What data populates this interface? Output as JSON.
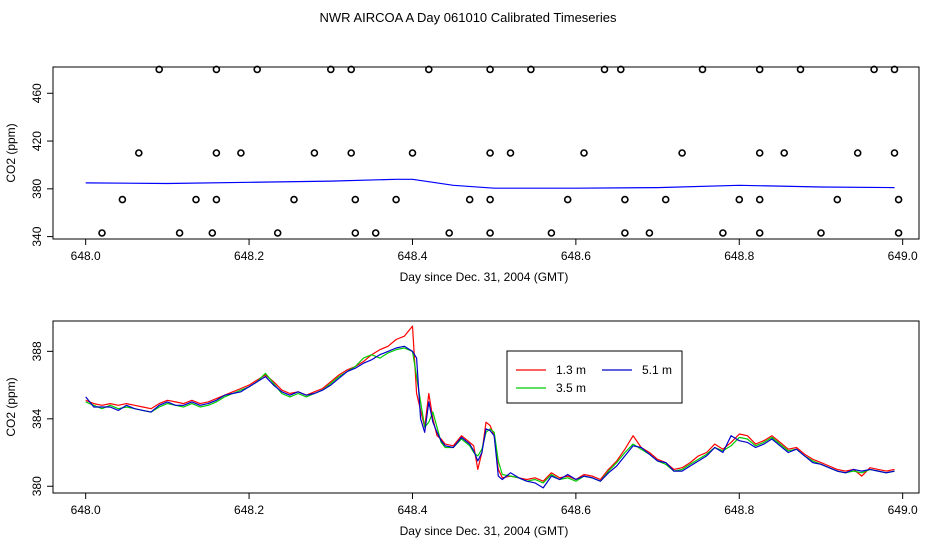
{
  "title": "NWR AIRCOA A  Day 061010  Calibrated Timeseries",
  "chart_data": [
    {
      "type": "scatter",
      "xlabel": "Day since Dec. 31, 2004 (GMT)",
      "ylabel": "CO2 (ppm)",
      "xlim": [
        647.96,
        649.02
      ],
      "ylim": [
        338,
        482
      ],
      "xticks": [
        "648.0",
        "648.2",
        "648.4",
        "648.6",
        "648.8",
        "649.0"
      ],
      "yticks": [
        "340",
        "380",
        "420",
        "460"
      ],
      "points": [
        [
          648.09,
          480
        ],
        [
          648.16,
          480
        ],
        [
          648.21,
          480
        ],
        [
          648.3,
          480
        ],
        [
          648.325,
          480
        ],
        [
          648.42,
          480
        ],
        [
          648.495,
          480
        ],
        [
          648.545,
          480
        ],
        [
          648.635,
          480
        ],
        [
          648.655,
          480
        ],
        [
          648.755,
          480
        ],
        [
          648.825,
          480
        ],
        [
          648.875,
          480
        ],
        [
          648.965,
          480
        ],
        [
          648.99,
          480
        ],
        [
          648.065,
          410
        ],
        [
          648.16,
          410
        ],
        [
          648.19,
          410
        ],
        [
          648.28,
          410
        ],
        [
          648.325,
          410
        ],
        [
          648.4,
          410
        ],
        [
          648.495,
          410
        ],
        [
          648.52,
          410
        ],
        [
          648.61,
          410
        ],
        [
          648.73,
          410
        ],
        [
          648.825,
          410
        ],
        [
          648.855,
          410
        ],
        [
          648.945,
          410
        ],
        [
          648.99,
          410
        ],
        [
          648.045,
          371
        ],
        [
          648.135,
          371
        ],
        [
          648.16,
          371
        ],
        [
          648.255,
          371
        ],
        [
          648.33,
          371
        ],
        [
          648.38,
          371
        ],
        [
          648.47,
          371
        ],
        [
          648.495,
          371
        ],
        [
          648.59,
          371
        ],
        [
          648.66,
          371
        ],
        [
          648.71,
          371
        ],
        [
          648.8,
          371
        ],
        [
          648.825,
          371
        ],
        [
          648.92,
          371
        ],
        [
          648.995,
          371
        ],
        [
          648.02,
          343
        ],
        [
          648.115,
          343
        ],
        [
          648.155,
          343
        ],
        [
          648.235,
          343
        ],
        [
          648.33,
          343
        ],
        [
          648.355,
          343
        ],
        [
          648.445,
          343
        ],
        [
          648.495,
          343
        ],
        [
          648.57,
          343
        ],
        [
          648.66,
          343
        ],
        [
          648.69,
          343
        ],
        [
          648.78,
          343
        ],
        [
          648.825,
          343
        ],
        [
          648.9,
          343
        ],
        [
          648.995,
          343
        ]
      ],
      "series": [
        {
          "x": [
            648.0,
            648.1,
            648.2,
            648.3,
            648.38,
            648.4,
            648.45,
            648.5,
            648.6,
            648.7,
            648.8,
            648.9,
            648.99
          ],
          "values": [
            385,
            384.5,
            385.5,
            386.5,
            388,
            388,
            383,
            380.5,
            380.5,
            381,
            383,
            381.5,
            381
          ],
          "color": "#0000ff"
        }
      ]
    },
    {
      "type": "line",
      "xlabel": "Day since Dec. 31, 2004 (GMT)",
      "ylabel": "CO2 (ppm)",
      "xlim": [
        647.96,
        649.02
      ],
      "ylim": [
        379.6,
        389.8
      ],
      "xticks": [
        "648.0",
        "648.2",
        "648.4",
        "648.6",
        "648.8",
        "649.0"
      ],
      "yticks": [
        "380",
        "384",
        "388"
      ],
      "legend_position": "top-center",
      "x": [
        648.0,
        648.01,
        648.02,
        648.03,
        648.04,
        648.05,
        648.06,
        648.07,
        648.08,
        648.09,
        648.1,
        648.11,
        648.12,
        648.13,
        648.14,
        648.15,
        648.16,
        648.17,
        648.18,
        648.19,
        648.2,
        648.21,
        648.22,
        648.23,
        648.24,
        648.25,
        648.26,
        648.27,
        648.28,
        648.29,
        648.3,
        648.31,
        648.32,
        648.33,
        648.34,
        648.35,
        648.36,
        648.37,
        648.38,
        648.39,
        648.4,
        648.405,
        648.41,
        648.415,
        648.42,
        648.425,
        648.43,
        648.435,
        648.44,
        648.45,
        648.46,
        648.47,
        648.475,
        648.48,
        648.485,
        648.49,
        648.495,
        648.5,
        648.505,
        648.51,
        648.52,
        648.53,
        648.54,
        648.55,
        648.56,
        648.57,
        648.58,
        648.59,
        648.6,
        648.61,
        648.62,
        648.63,
        648.64,
        648.65,
        648.66,
        648.67,
        648.68,
        648.69,
        648.7,
        648.71,
        648.72,
        648.73,
        648.74,
        648.75,
        648.76,
        648.77,
        648.78,
        648.79,
        648.8,
        648.81,
        648.82,
        648.83,
        648.84,
        648.85,
        648.86,
        648.87,
        648.88,
        648.89,
        648.9,
        648.91,
        648.92,
        648.93,
        648.94,
        648.95,
        648.96,
        648.97,
        648.98,
        648.99
      ],
      "series": [
        {
          "name": "1.3 m",
          "color": "#ff0000",
          "values": [
            385.1,
            384.9,
            384.8,
            384.9,
            384.8,
            384.9,
            384.8,
            384.7,
            384.6,
            384.9,
            385.1,
            385.0,
            384.9,
            385.1,
            384.9,
            385.0,
            385.2,
            385.4,
            385.6,
            385.8,
            386.0,
            386.3,
            386.6,
            386.2,
            385.7,
            385.5,
            385.6,
            385.4,
            385.6,
            385.8,
            386.2,
            386.6,
            386.9,
            387.1,
            387.4,
            387.8,
            388.1,
            388.3,
            388.7,
            388.9,
            389.5,
            385.5,
            384.5,
            383.5,
            385.5,
            384.0,
            383.0,
            382.8,
            382.5,
            382.4,
            383.0,
            382.6,
            382.4,
            381.0,
            382.0,
            383.8,
            383.6,
            383.0,
            381.0,
            380.5,
            380.6,
            380.5,
            380.4,
            380.5,
            380.3,
            380.8,
            380.5,
            380.6,
            380.4,
            380.7,
            380.6,
            380.4,
            381.0,
            381.5,
            382.2,
            383.0,
            382.3,
            382.0,
            381.6,
            381.4,
            381.0,
            381.1,
            381.4,
            381.8,
            382.0,
            382.5,
            382.2,
            382.6,
            383.1,
            383.0,
            382.5,
            382.7,
            383.0,
            382.6,
            382.2,
            382.3,
            381.9,
            381.6,
            381.4,
            381.2,
            381.0,
            380.9,
            381.0,
            380.6,
            381.1,
            381.0,
            380.9,
            381.0
          ]
        },
        {
          "name": "3.5 m",
          "color": "#00cc00",
          "values": [
            385.0,
            384.8,
            384.6,
            384.8,
            384.6,
            384.7,
            384.6,
            384.5,
            384.4,
            384.7,
            384.9,
            384.8,
            384.7,
            384.9,
            384.7,
            384.8,
            385.0,
            385.3,
            385.5,
            385.7,
            385.9,
            386.2,
            386.7,
            386.1,
            385.5,
            385.3,
            385.5,
            385.3,
            385.5,
            385.7,
            386.1,
            386.5,
            386.8,
            387.1,
            387.6,
            387.8,
            387.6,
            387.9,
            388.1,
            388.2,
            388.0,
            386.5,
            385.0,
            383.5,
            383.8,
            384.4,
            383.5,
            382.6,
            382.3,
            382.3,
            382.8,
            382.4,
            382.0,
            381.8,
            382.2,
            383.2,
            383.4,
            383.2,
            381.5,
            380.7,
            380.6,
            380.5,
            380.3,
            380.4,
            380.2,
            380.7,
            380.4,
            380.5,
            380.3,
            380.6,
            380.5,
            380.3,
            380.9,
            381.4,
            382.0,
            382.5,
            382.2,
            381.9,
            381.5,
            381.3,
            380.9,
            381.0,
            381.3,
            381.6,
            381.9,
            382.3,
            382.1,
            382.4,
            382.9,
            382.8,
            382.4,
            382.6,
            382.9,
            382.5,
            382.1,
            382.2,
            381.8,
            381.5,
            381.3,
            381.1,
            380.9,
            380.8,
            380.9,
            380.8,
            381.0,
            380.9,
            380.8,
            380.9
          ]
        },
        {
          "name": "5.1 m",
          "color": "#0000cc",
          "values": [
            385.3,
            384.7,
            384.7,
            384.7,
            384.5,
            384.8,
            384.6,
            384.5,
            384.4,
            384.8,
            385.0,
            384.8,
            384.8,
            385.0,
            384.8,
            384.9,
            385.1,
            385.4,
            385.5,
            385.6,
            385.9,
            386.2,
            386.5,
            386.0,
            385.6,
            385.4,
            385.6,
            385.4,
            385.5,
            385.7,
            386.0,
            386.4,
            386.8,
            387.0,
            387.3,
            387.5,
            387.8,
            388.0,
            388.2,
            388.3,
            388.0,
            387.6,
            384.0,
            383.2,
            385.0,
            383.8,
            383.2,
            382.7,
            382.4,
            382.3,
            382.9,
            382.5,
            382.1,
            381.5,
            382.0,
            383.4,
            383.3,
            383.0,
            380.6,
            380.4,
            380.8,
            380.5,
            380.3,
            380.2,
            379.9,
            380.6,
            380.4,
            380.7,
            380.4,
            380.6,
            380.5,
            380.3,
            380.8,
            381.2,
            381.8,
            382.4,
            382.3,
            381.9,
            381.5,
            381.4,
            380.9,
            380.9,
            381.2,
            381.5,
            381.8,
            382.3,
            382.0,
            383.0,
            382.7,
            382.6,
            382.3,
            382.5,
            382.8,
            382.4,
            382.0,
            382.2,
            381.8,
            381.4,
            381.3,
            381.1,
            380.9,
            380.8,
            381.0,
            380.9,
            381.0,
            380.9,
            380.8,
            380.9
          ]
        }
      ]
    }
  ]
}
